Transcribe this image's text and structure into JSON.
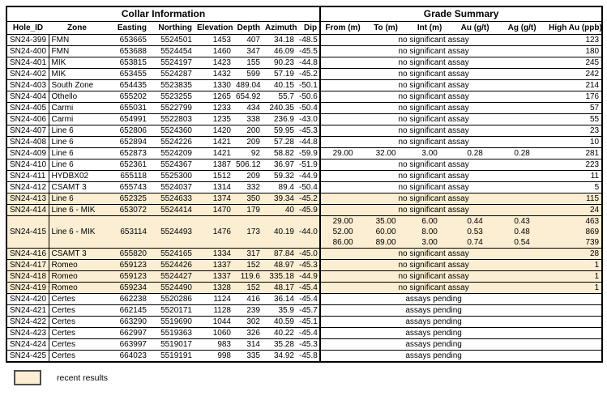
{
  "header": {
    "collar_title": "Collar Information",
    "grade_title": "Grade Summary"
  },
  "columns": {
    "collar": [
      "Hole_ID",
      "Zone",
      "Easting",
      "Northing",
      "Elevation",
      "Depth",
      "Azimuth",
      "Dip"
    ],
    "grade": [
      "From (m)",
      "To (m)",
      "Int (m)",
      "Au (g/t)",
      "Ag (g/t)",
      "High Au (ppb)"
    ]
  },
  "messages": {
    "no_assay": "no significant assay",
    "pending": "assays pending"
  },
  "colors": {
    "highlight": "#fbeed2",
    "border": "#000000"
  },
  "legend": {
    "label": "recent results"
  },
  "rows": [
    {
      "hole_id": "SN24-399",
      "zone": "FMN",
      "easting": "653665",
      "northing": "5524501",
      "elevation": "1453",
      "depth": "407",
      "azimuth": "34.18",
      "dip": "-48.5",
      "status": "none",
      "high_au": "123",
      "highlight": false
    },
    {
      "hole_id": "SN24-400",
      "zone": "FMN",
      "easting": "653688",
      "northing": "5524454",
      "elevation": "1460",
      "depth": "347",
      "azimuth": "46.09",
      "dip": "-45.5",
      "status": "none",
      "high_au": "180",
      "highlight": false
    },
    {
      "hole_id": "SN24-401",
      "zone": "MIK",
      "easting": "653815",
      "northing": "5524197",
      "elevation": "1423",
      "depth": "155",
      "azimuth": "90.23",
      "dip": "-44.8",
      "status": "none",
      "high_au": "245",
      "highlight": false
    },
    {
      "hole_id": "SN24-402",
      "zone": "MIK",
      "easting": "653455",
      "northing": "5524287",
      "elevation": "1432",
      "depth": "599",
      "azimuth": "57.19",
      "dip": "-45.2",
      "status": "none",
      "high_au": "242",
      "highlight": false
    },
    {
      "hole_id": "SN24-403",
      "zone": "South Zone",
      "easting": "654435",
      "northing": "5523835",
      "elevation": "1330",
      "depth": "489.04",
      "azimuth": "40.15",
      "dip": "-50.1",
      "status": "none",
      "high_au": "214",
      "highlight": false
    },
    {
      "hole_id": "SN24-404",
      "zone": "Othello",
      "easting": "655202",
      "northing": "5523255",
      "elevation": "1265",
      "depth": "654.92",
      "azimuth": "55.7",
      "dip": "-50.6",
      "status": "none",
      "high_au": "176",
      "highlight": false
    },
    {
      "hole_id": "SN24-405",
      "zone": "Carmi",
      "easting": "655031",
      "northing": "5522799",
      "elevation": "1233",
      "depth": "434",
      "azimuth": "240.35",
      "dip": "-50.4",
      "status": "none",
      "high_au": "57",
      "highlight": false
    },
    {
      "hole_id": "SN24-406",
      "zone": "Carmi",
      "easting": "654991",
      "northing": "5522803",
      "elevation": "1235",
      "depth": "338",
      "azimuth": "236.9",
      "dip": "-43.0",
      "status": "none",
      "high_au": "55",
      "highlight": false
    },
    {
      "hole_id": "SN24-407",
      "zone": "Line 6",
      "easting": "652806",
      "northing": "5524360",
      "elevation": "1420",
      "depth": "200",
      "azimuth": "59.95",
      "dip": "-45.3",
      "status": "none",
      "high_au": "23",
      "highlight": false
    },
    {
      "hole_id": "SN24-408",
      "zone": "Line 6",
      "easting": "652894",
      "northing": "5524226",
      "elevation": "1421",
      "depth": "209",
      "azimuth": "57.28",
      "dip": "-44.8",
      "status": "none",
      "high_au": "10",
      "highlight": false
    },
    {
      "hole_id": "SN24-409",
      "zone": "Line 6",
      "easting": "652873",
      "northing": "5524209",
      "elevation": "1421",
      "depth": "92",
      "azimuth": "58.82",
      "dip": "-59.9",
      "status": "intervals",
      "intervals": [
        {
          "from": "29.00",
          "to": "32.00",
          "int": "3.00",
          "au": "0.28",
          "ag": "0.28",
          "high_au": "281"
        }
      ],
      "highlight": false
    },
    {
      "hole_id": "SN24-410",
      "zone": "Line 6",
      "easting": "652361",
      "northing": "5524367",
      "elevation": "1387",
      "depth": "506.12",
      "azimuth": "36.97",
      "dip": "-51.9",
      "status": "none",
      "high_au": "223",
      "highlight": false
    },
    {
      "hole_id": "SN24-411",
      "zone": "HYDBX02",
      "easting": "655118",
      "northing": "5525300",
      "elevation": "1512",
      "depth": "209",
      "azimuth": "59.32",
      "dip": "-44.9",
      "status": "none",
      "high_au": "11",
      "highlight": false
    },
    {
      "hole_id": "SN24-412",
      "zone": "CSAMT 3",
      "easting": "655743",
      "northing": "5524037",
      "elevation": "1314",
      "depth": "332",
      "azimuth": "89.4",
      "dip": "-50.4",
      "status": "none",
      "high_au": "5",
      "highlight": false
    },
    {
      "hole_id": "SN24-413",
      "zone": "Line 6",
      "easting": "652325",
      "northing": "5524633",
      "elevation": "1374",
      "depth": "350",
      "azimuth": "39.34",
      "dip": "-45.2",
      "status": "none",
      "high_au": "115",
      "highlight": true
    },
    {
      "hole_id": "SN24-414",
      "zone": "Line 6 - MIK",
      "easting": "653072",
      "northing": "5524414",
      "elevation": "1470",
      "depth": "179",
      "azimuth": "40",
      "dip": "-45.9",
      "status": "none",
      "high_au": "24",
      "highlight": true
    },
    {
      "hole_id": "SN24-415",
      "zone": "Line 6 - MIK",
      "easting": "653114",
      "northing": "5524493",
      "elevation": "1476",
      "depth": "173",
      "azimuth": "40.19",
      "dip": "-44.0",
      "status": "intervals",
      "intervals": [
        {
          "from": "29.00",
          "to": "35.00",
          "int": "6.00",
          "au": "0.44",
          "ag": "0.43",
          "high_au": "463"
        },
        {
          "from": "52.00",
          "to": "60.00",
          "int": "8.00",
          "au": "0.53",
          "ag": "0.48",
          "high_au": "869"
        },
        {
          "from": "86.00",
          "to": "89.00",
          "int": "3.00",
          "au": "0.74",
          "ag": "0.54",
          "high_au": "739"
        }
      ],
      "highlight": true
    },
    {
      "hole_id": "SN24-416",
      "zone": "CSAMT 3",
      "easting": "655820",
      "northing": "5524165",
      "elevation": "1334",
      "depth": "317",
      "azimuth": "87.84",
      "dip": "-45.0",
      "status": "none",
      "high_au": "28",
      "highlight": true
    },
    {
      "hole_id": "SN24-417",
      "zone": "Romeo",
      "easting": "659123",
      "northing": "5524426",
      "elevation": "1337",
      "depth": "152",
      "azimuth": "48.97",
      "dip": "-45.3",
      "status": "none",
      "high_au": "1",
      "highlight": true
    },
    {
      "hole_id": "SN24-418",
      "zone": "Romeo",
      "easting": "659123",
      "northing": "5524427",
      "elevation": "1337",
      "depth": "119.6",
      "azimuth": "335.18",
      "dip": "-44.9",
      "status": "none",
      "high_au": "1",
      "highlight": true
    },
    {
      "hole_id": "SN24-419",
      "zone": "Romeo",
      "easting": "659234",
      "northing": "5524490",
      "elevation": "1328",
      "depth": "152",
      "azimuth": "48.17",
      "dip": "-45.4",
      "status": "none",
      "high_au": "1",
      "highlight": true
    },
    {
      "hole_id": "SN24-420",
      "zone": "Certes",
      "easting": "662238",
      "northing": "5520286",
      "elevation": "1124",
      "depth": "416",
      "azimuth": "36.14",
      "dip": "-45.4",
      "status": "pending",
      "high_au": "",
      "highlight": false
    },
    {
      "hole_id": "SN24-421",
      "zone": "Certes",
      "easting": "662145",
      "northing": "5520171",
      "elevation": "1128",
      "depth": "239",
      "azimuth": "35.9",
      "dip": "-45.7",
      "status": "pending",
      "high_au": "",
      "highlight": false
    },
    {
      "hole_id": "SN24-422",
      "zone": "Certes",
      "easting": "663290",
      "northing": "5519690",
      "elevation": "1044",
      "depth": "302",
      "azimuth": "40.59",
      "dip": "-45.1",
      "status": "pending",
      "high_au": "",
      "highlight": false
    },
    {
      "hole_id": "SN24-423",
      "zone": "Certes",
      "easting": "662997",
      "northing": "5519363",
      "elevation": "1060",
      "depth": "326",
      "azimuth": "40.22",
      "dip": "-45.4",
      "status": "pending",
      "high_au": "",
      "highlight": false
    },
    {
      "hole_id": "SN24-424",
      "zone": "Certes",
      "easting": "663997",
      "northing": "5519017",
      "elevation": "983",
      "depth": "314",
      "azimuth": "35.28",
      "dip": "-45.3",
      "status": "pending",
      "high_au": "",
      "highlight": false
    },
    {
      "hole_id": "SN24-425",
      "zone": "Certes",
      "easting": "664023",
      "northing": "5519191",
      "elevation": "998",
      "depth": "335",
      "azimuth": "34.92",
      "dip": "-45.8",
      "status": "pending",
      "high_au": "",
      "highlight": false
    }
  ]
}
